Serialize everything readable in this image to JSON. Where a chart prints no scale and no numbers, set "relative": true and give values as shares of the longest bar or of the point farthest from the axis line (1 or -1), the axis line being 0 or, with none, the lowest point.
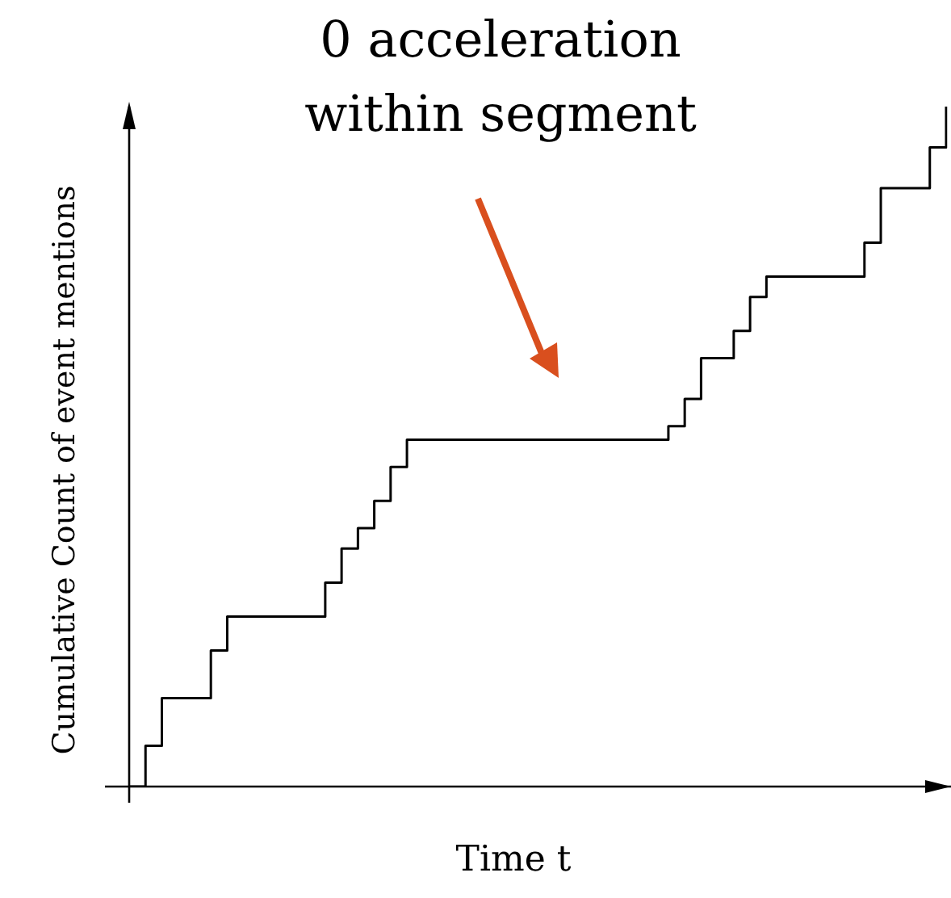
{
  "chart_data": {
    "type": "step",
    "relative": true,
    "color": "#000000",
    "marker": "none",
    "xlabel": "Time t",
    "ylabel": "Cumulative Count of event mentions",
    "annotations": [
      "0 acceleration within segment"
    ],
    "categories": [
      null,
      null,
      null,
      null,
      null,
      null,
      null,
      null,
      null,
      null,
      null,
      null,
      null,
      null,
      null,
      null,
      null,
      null,
      null,
      null,
      null,
      null,
      null,
      null,
      null,
      null,
      null,
      null,
      null,
      null,
      null,
      null,
      null,
      null,
      null,
      null,
      null,
      null,
      null,
      null,
      null,
      null,
      null,
      null,
      null,
      null,
      null,
      null,
      null,
      null,
      null
    ],
    "values": [
      0,
      0.06,
      0.13,
      0.13,
      0.13,
      0.2,
      0.25,
      0.25,
      0.25,
      0.25,
      0.25,
      0.25,
      0.3,
      0.35,
      0.38,
      0.42,
      0.47,
      0.51,
      0.51,
      0.51,
      0.51,
      0.51,
      0.51,
      0.51,
      0.51,
      0.51,
      0.51,
      0.51,
      0.51,
      0.51,
      0.51,
      0.51,
      0.51,
      0.53,
      0.57,
      0.63,
      0.63,
      0.67,
      0.72,
      0.75,
      0.75,
      0.75,
      0.75,
      0.75,
      0.75,
      0.8,
      0.88,
      0.88,
      0.88,
      0.94,
      1
    ]
  }
}
